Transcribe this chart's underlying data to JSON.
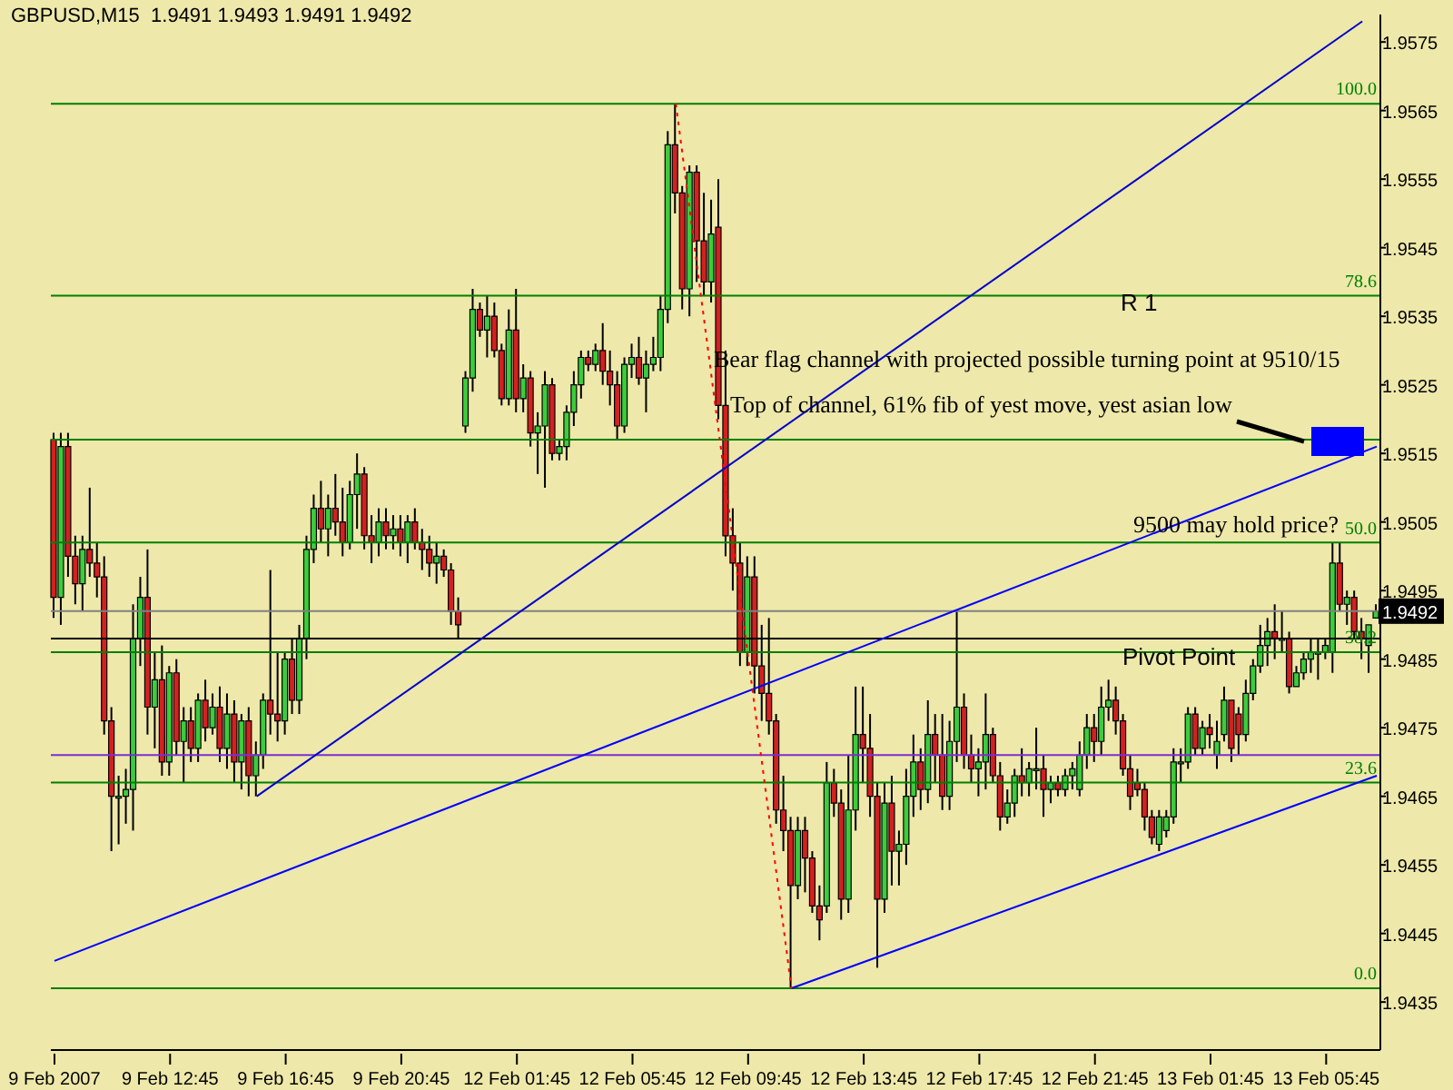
{
  "chart_data": {
    "type": "candlestick",
    "title": "GBPUSD,M15  1.9491 1.9493 1.9491 1.9492",
    "categories": [
      "9 Feb 2007",
      null,
      null,
      null,
      null,
      null,
      null,
      null,
      null,
      null,
      null,
      null,
      null,
      null,
      null,
      null,
      "9 Feb 12:45",
      null,
      null,
      null,
      null,
      null,
      null,
      null,
      null,
      null,
      null,
      null,
      null,
      null,
      null,
      null,
      "9 Feb 16:45",
      null,
      null,
      null,
      null,
      null,
      null,
      null,
      null,
      null,
      null,
      null,
      null,
      null,
      null,
      null,
      "9 Feb 20:45",
      null,
      null,
      null,
      null,
      null,
      null,
      null,
      null,
      null,
      null,
      null,
      null,
      null,
      null,
      null,
      "12 Feb 01:45",
      null,
      null,
      null,
      null,
      null,
      null,
      null,
      null,
      null,
      null,
      null,
      null,
      null,
      null,
      null,
      "12 Feb 05:45",
      null,
      null,
      null,
      null,
      null,
      null,
      null,
      null,
      null,
      null,
      null,
      null,
      null,
      null,
      null,
      "12 Feb 09:45",
      null,
      null,
      null,
      null,
      null,
      null,
      null,
      null,
      null,
      null,
      null,
      null,
      null,
      null,
      null,
      "12 Feb 13:45",
      null,
      null,
      null,
      null,
      null,
      null,
      null,
      null,
      null,
      null,
      null,
      null,
      null,
      null,
      null,
      "12 Feb 17:45",
      null,
      null,
      null,
      null,
      null,
      null,
      null,
      null,
      null,
      null,
      null,
      null,
      null,
      null,
      null,
      "12 Feb 21:45",
      null,
      null,
      null,
      null,
      null,
      null,
      null,
      null,
      null,
      null,
      null,
      null,
      null,
      null,
      null,
      "13 Feb 01:45",
      null,
      null,
      null,
      null,
      null,
      null,
      null,
      null,
      null,
      null,
      null,
      null,
      null,
      null,
      null,
      "13 Feb 05:45",
      null,
      null,
      null,
      null,
      null,
      null,
      null
    ],
    "ohlc": [
      [
        1.9517,
        1.9518,
        1.9491,
        1.9494
      ],
      [
        1.9494,
        1.9518,
        1.949,
        1.9516
      ],
      [
        1.9516,
        1.9518,
        1.9497,
        1.95
      ],
      [
        1.95,
        1.9503,
        1.9493,
        1.9496
      ],
      [
        1.9496,
        1.9503,
        1.9492,
        1.9501
      ],
      [
        1.9501,
        1.951,
        1.9497,
        1.9499
      ],
      [
        1.9499,
        1.9502,
        1.9494,
        1.9497
      ],
      [
        1.9497,
        1.95,
        1.9474,
        1.9476
      ],
      [
        1.9476,
        1.9478,
        1.9457,
        1.9465
      ],
      [
        1.9465,
        1.9468,
        1.9458,
        1.9465
      ],
      [
        1.9465,
        1.9469,
        1.9461,
        1.9466
      ],
      [
        1.9466,
        1.9493,
        1.946,
        1.9488
      ],
      [
        1.9488,
        1.9497,
        1.9484,
        1.9494
      ],
      [
        1.9494,
        1.9501,
        1.9474,
        1.9478
      ],
      [
        1.9478,
        1.9486,
        1.9472,
        1.9482
      ],
      [
        1.9482,
        1.9487,
        1.9468,
        1.947
      ],
      [
        1.947,
        1.9484,
        1.9468,
        1.9483
      ],
      [
        1.9483,
        1.9485,
        1.9471,
        1.9473
      ],
      [
        1.9473,
        1.9478,
        1.9467,
        1.9476
      ],
      [
        1.9476,
        1.9478,
        1.947,
        1.9472
      ],
      [
        1.9472,
        1.948,
        1.947,
        1.9479
      ],
      [
        1.9479,
        1.9482,
        1.9473,
        1.9475
      ],
      [
        1.9475,
        1.948,
        1.9474,
        1.9478
      ],
      [
        1.9478,
        1.9481,
        1.947,
        1.9472
      ],
      [
        1.9472,
        1.948,
        1.9469,
        1.9477
      ],
      [
        1.9477,
        1.9479,
        1.9467,
        1.947
      ],
      [
        1.947,
        1.9477,
        1.9466,
        1.9476
      ],
      [
        1.9476,
        1.9478,
        1.9465,
        1.9468
      ],
      [
        1.9468,
        1.9473,
        1.9465,
        1.9471
      ],
      [
        1.9471,
        1.948,
        1.9469,
        1.9479
      ],
      [
        1.9479,
        1.9498,
        1.9474,
        1.9477
      ],
      [
        1.9477,
        1.9486,
        1.9473,
        1.9476
      ],
      [
        1.9476,
        1.9486,
        1.9474,
        1.9485
      ],
      [
        1.9485,
        1.9488,
        1.9477,
        1.9479
      ],
      [
        1.9479,
        1.949,
        1.9477,
        1.9488
      ],
      [
        1.9488,
        1.9503,
        1.9485,
        1.9501
      ],
      [
        1.9501,
        1.9509,
        1.9499,
        1.9507
      ],
      [
        1.9507,
        1.9511,
        1.9502,
        1.9504
      ],
      [
        1.9504,
        1.9509,
        1.95,
        1.9507
      ],
      [
        1.9507,
        1.9512,
        1.9503,
        1.9505
      ],
      [
        1.9505,
        1.951,
        1.95,
        1.9502
      ],
      [
        1.9502,
        1.9511,
        1.9501,
        1.9509
      ],
      [
        1.9509,
        1.9515,
        1.9504,
        1.9512
      ],
      [
        1.9512,
        1.9513,
        1.9501,
        1.9503
      ],
      [
        1.9503,
        1.9506,
        1.9499,
        1.9502
      ],
      [
        1.9502,
        1.9507,
        1.95,
        1.9505
      ],
      [
        1.9505,
        1.9507,
        1.9501,
        1.9503
      ],
      [
        1.9503,
        1.9506,
        1.9501,
        1.9504
      ],
      [
        1.9504,
        1.9506,
        1.95,
        1.9502
      ],
      [
        1.9502,
        1.9506,
        1.9499,
        1.9505
      ],
      [
        1.9505,
        1.9507,
        1.9501,
        1.9502
      ],
      [
        1.9502,
        1.9504,
        1.9498,
        1.9501
      ],
      [
        1.9501,
        1.9503,
        1.9497,
        1.9499
      ],
      [
        1.9499,
        1.9502,
        1.9496,
        1.95
      ],
      [
        1.95,
        1.9501,
        1.9497,
        1.9498
      ],
      [
        1.9498,
        1.9499,
        1.949,
        1.9492
      ],
      [
        1.9492,
        1.9494,
        1.9488,
        1.949
      ],
      [
        1.9519,
        1.9527,
        1.9518,
        1.9526
      ],
      [
        1.9526,
        1.9539,
        1.9524,
        1.9536
      ],
      [
        1.9536,
        1.9537,
        1.9532,
        1.9533
      ],
      [
        1.9533,
        1.9538,
        1.9529,
        1.9535
      ],
      [
        1.9535,
        1.9537,
        1.9529,
        1.953
      ],
      [
        1.953,
        1.9531,
        1.9522,
        1.9523
      ],
      [
        1.9523,
        1.9536,
        1.9522,
        1.9533
      ],
      [
        1.9533,
        1.9539,
        1.9521,
        1.9523
      ],
      [
        1.9523,
        1.9528,
        1.9521,
        1.9526
      ],
      [
        1.9526,
        1.9527,
        1.9516,
        1.9518
      ],
      [
        1.9518,
        1.9521,
        1.9512,
        1.9519
      ],
      [
        1.9519,
        1.9527,
        1.951,
        1.9525
      ],
      [
        1.9525,
        1.9526,
        1.9514,
        1.9515
      ],
      [
        1.9515,
        1.9517,
        1.9514,
        1.9516
      ],
      [
        1.9516,
        1.9522,
        1.9514,
        1.9521
      ],
      [
        1.9521,
        1.9527,
        1.9519,
        1.9525
      ],
      [
        1.9525,
        1.953,
        1.9523,
        1.9529
      ],
      [
        1.9529,
        1.953,
        1.9527,
        1.9528
      ],
      [
        1.9528,
        1.9531,
        1.9527,
        1.953
      ],
      [
        1.953,
        1.9534,
        1.9525,
        1.9527
      ],
      [
        1.9527,
        1.953,
        1.9522,
        1.9525
      ],
      [
        1.9525,
        1.9527,
        1.9517,
        1.9519
      ],
      [
        1.9519,
        1.9529,
        1.9518,
        1.9528
      ],
      [
        1.9528,
        1.9531,
        1.9526,
        1.9529
      ],
      [
        1.9529,
        1.9532,
        1.9525,
        1.9526
      ],
      [
        1.9526,
        1.953,
        1.9521,
        1.9528
      ],
      [
        1.9528,
        1.9532,
        1.9527,
        1.9529
      ],
      [
        1.9529,
        1.9538,
        1.9527,
        1.9536
      ],
      [
        1.9536,
        1.9562,
        1.9534,
        1.956
      ],
      [
        1.956,
        1.9566,
        1.955,
        1.9553
      ],
      [
        1.9553,
        1.9554,
        1.9536,
        1.9539
      ],
      [
        1.9539,
        1.9557,
        1.9535,
        1.9556
      ],
      [
        1.9556,
        1.9557,
        1.954,
        1.9546
      ],
      [
        1.9546,
        1.9553,
        1.9538,
        1.954
      ],
      [
        1.954,
        1.9552,
        1.9537,
        1.9547
      ],
      [
        1.9548,
        1.9555,
        1.952,
        1.9522
      ],
      [
        1.9522,
        1.953,
        1.95,
        1.9503
      ],
      [
        1.9503,
        1.9507,
        1.9495,
        1.9499
      ],
      [
        1.9499,
        1.9502,
        1.9484,
        1.9486
      ],
      [
        1.9486,
        1.95,
        1.9484,
        1.9497
      ],
      [
        1.9497,
        1.95,
        1.948,
        1.9484
      ],
      [
        1.9484,
        1.949,
        1.9476,
        1.948
      ],
      [
        1.948,
        1.9491,
        1.9474,
        1.9476
      ],
      [
        1.9476,
        1.9477,
        1.9461,
        1.9463
      ],
      [
        1.9463,
        1.9468,
        1.9457,
        1.946
      ],
      [
        1.946,
        1.9462,
        1.9437,
        1.9452
      ],
      [
        1.9452,
        1.9462,
        1.945,
        1.946
      ],
      [
        1.946,
        1.9462,
        1.9451,
        1.9456
      ],
      [
        1.9456,
        1.9457,
        1.9448,
        1.9449
      ],
      [
        1.9449,
        1.9452,
        1.9444,
        1.9447
      ],
      [
        1.9449,
        1.947,
        1.9448,
        1.9467
      ],
      [
        1.9467,
        1.9469,
        1.9462,
        1.9464
      ],
      [
        1.9464,
        1.9466,
        1.9447,
        1.945
      ],
      [
        1.945,
        1.9471,
        1.9448,
        1.9463
      ],
      [
        1.9463,
        1.9481,
        1.946,
        1.9474
      ],
      [
        1.9474,
        1.9481,
        1.9467,
        1.9472
      ],
      [
        1.9472,
        1.9477,
        1.9462,
        1.9465
      ],
      [
        1.9465,
        1.9467,
        1.944,
        1.945
      ],
      [
        1.945,
        1.9467,
        1.9448,
        1.9464
      ],
      [
        1.9464,
        1.9468,
        1.9452,
        1.9457
      ],
      [
        1.9457,
        1.946,
        1.9452,
        1.9458
      ],
      [
        1.9458,
        1.9469,
        1.9455,
        1.9465
      ],
      [
        1.9465,
        1.9474,
        1.9462,
        1.947
      ],
      [
        1.947,
        1.9472,
        1.9463,
        1.9466
      ],
      [
        1.9466,
        1.9479,
        1.9464,
        1.9474
      ],
      [
        1.9474,
        1.9477,
        1.9467,
        1.9471
      ],
      [
        1.9471,
        1.9477,
        1.9463,
        1.9465
      ],
      [
        1.9465,
        1.9476,
        1.9463,
        1.9473
      ],
      [
        1.9473,
        1.9492,
        1.947,
        1.9478
      ],
      [
        1.9478,
        1.948,
        1.9469,
        1.9471
      ],
      [
        1.9471,
        1.9474,
        1.9467,
        1.9469
      ],
      [
        1.9469,
        1.9472,
        1.9465,
        1.947
      ],
      [
        1.947,
        1.948,
        1.9466,
        1.9474
      ],
      [
        1.9474,
        1.9475,
        1.9467,
        1.9468
      ],
      [
        1.9468,
        1.947,
        1.946,
        1.9462
      ],
      [
        1.9462,
        1.9466,
        1.9461,
        1.9464
      ],
      [
        1.9464,
        1.9469,
        1.9462,
        1.9468
      ],
      [
        1.9468,
        1.9472,
        1.9465,
        1.9467
      ],
      [
        1.9467,
        1.947,
        1.9465,
        1.9469
      ],
      [
        1.9469,
        1.9475,
        1.9466,
        1.9469
      ],
      [
        1.9469,
        1.9471,
        1.9462,
        1.9466
      ],
      [
        1.9466,
        1.9468,
        1.9464,
        1.9467
      ],
      [
        1.9467,
        1.9468,
        1.9465,
        1.9466
      ],
      [
        1.9466,
        1.9469,
        1.9465,
        1.9468
      ],
      [
        1.9468,
        1.947,
        1.9466,
        1.9469
      ],
      [
        1.9466,
        1.9473,
        1.9465,
        1.9471
      ],
      [
        1.9471,
        1.9477,
        1.9469,
        1.9475
      ],
      [
        1.9475,
        1.9477,
        1.947,
        1.9473
      ],
      [
        1.9473,
        1.9481,
        1.9471,
        1.9478
      ],
      [
        1.9478,
        1.9482,
        1.9476,
        1.9479
      ],
      [
        1.9479,
        1.9481,
        1.9474,
        1.9476
      ],
      [
        1.9476,
        1.9477,
        1.9468,
        1.9469
      ],
      [
        1.9469,
        1.9471,
        1.9463,
        1.9465
      ],
      [
        1.9467,
        1.9469,
        1.9465,
        1.9466
      ],
      [
        1.9466,
        1.9467,
        1.946,
        1.9462
      ],
      [
        1.9462,
        1.9463,
        1.9458,
        1.9459
      ],
      [
        1.9458,
        1.9463,
        1.9457,
        1.9462
      ],
      [
        1.946,
        1.9463,
        1.9459,
        1.9462
      ],
      [
        1.9462,
        1.9472,
        1.9461,
        1.947
      ],
      [
        1.947,
        1.9472,
        1.9467,
        1.947
      ],
      [
        1.947,
        1.9478,
        1.9469,
        1.9477
      ],
      [
        1.9477,
        1.9478,
        1.9471,
        1.9472
      ],
      [
        1.9472,
        1.9476,
        1.9471,
        1.9475
      ],
      [
        1.9475,
        1.9477,
        1.9472,
        1.9474
      ],
      [
        1.9471,
        1.9476,
        1.9469,
        1.9473
      ],
      [
        1.9474,
        1.9481,
        1.9473,
        1.9479
      ],
      [
        1.9479,
        1.9479,
        1.947,
        1.9472
      ],
      [
        1.9477,
        1.9478,
        1.9471,
        1.9474
      ],
      [
        1.9474,
        1.9482,
        1.9473,
        1.948
      ],
      [
        1.948,
        1.9485,
        1.9479,
        1.9484
      ],
      [
        1.9484,
        1.949,
        1.9483,
        1.9487
      ],
      [
        1.9487,
        1.9491,
        1.9484,
        1.9489
      ],
      [
        1.9489,
        1.9493,
        1.9485,
        1.9488
      ],
      [
        1.9488,
        1.9492,
        1.9486,
        1.9488
      ],
      [
        1.9488,
        1.9489,
        1.948,
        1.9481
      ],
      [
        1.9481,
        1.9484,
        1.9481,
        1.9483
      ],
      [
        1.9483,
        1.9486,
        1.9482,
        1.9485
      ],
      [
        1.9485,
        1.9488,
        1.9483,
        1.9486
      ],
      [
        1.9486,
        1.9488,
        1.9482,
        1.9486
      ],
      [
        1.9486,
        1.9488,
        1.9485,
        1.9487
      ],
      [
        1.9486,
        1.9502,
        1.9483,
        1.9499
      ],
      [
        1.9499,
        1.9502,
        1.9492,
        1.9493
      ],
      [
        1.9493,
        1.9495,
        1.949,
        1.9494
      ],
      [
        1.9494,
        1.9495,
        1.9488,
        1.9489
      ],
      [
        1.9489,
        1.9491,
        1.9485,
        1.9488
      ],
      [
        1.9487,
        1.949,
        1.9483,
        1.949
      ],
      [
        1.9491,
        1.9493,
        1.9491,
        1.9492
      ]
    ],
    "series": [
      {
        "type": "line",
        "color": "#0000cc",
        "values": [
          null,
          null,
          null,
          null,
          null,
          null,
          null,
          null,
          null,
          null,
          null,
          null,
          null,
          null,
          null,
          null,
          null,
          null,
          null,
          null,
          null,
          null,
          null,
          null,
          null,
          null,
          null,
          null,
          1.9465,
          null,
          null,
          null,
          null,
          null,
          null,
          null,
          null,
          null,
          null,
          null,
          null,
          null,
          null,
          null,
          null,
          null,
          null,
          null,
          null,
          null,
          null,
          null,
          null,
          null,
          null,
          null,
          null,
          null,
          null,
          null,
          null,
          null,
          null,
          null,
          null,
          null,
          null,
          null,
          null,
          null,
          null,
          null,
          null,
          null,
          null,
          null,
          null,
          null,
          null,
          null,
          null,
          null,
          null,
          null,
          null,
          null,
          null,
          null,
          null,
          null,
          null,
          null,
          null,
          null,
          null,
          null,
          null,
          null,
          null,
          null,
          null,
          null,
          null,
          null,
          null,
          null,
          null,
          null,
          null,
          null,
          null,
          null,
          null,
          null,
          null,
          null,
          null,
          null,
          null,
          null,
          null,
          null,
          null,
          null,
          null,
          null,
          null,
          null,
          null,
          null,
          null,
          null,
          null,
          null,
          null,
          null,
          null,
          null,
          null,
          null,
          null,
          null,
          null,
          null,
          null,
          null,
          null,
          null,
          null,
          null,
          null,
          null,
          null,
          null,
          null,
          null,
          null,
          null,
          null,
          null,
          null,
          null,
          null,
          null,
          null,
          null,
          null,
          null,
          null,
          null,
          null,
          null,
          null,
          null,
          null,
          null,
          null,
          null,
          null,
          null,
          null,
          1.9578,
          null,
          null
        ]
      },
      {
        "type": "line",
        "color": "#0000ff",
        "values": [
          1.9441,
          null,
          null,
          null,
          null,
          null,
          null,
          null,
          null,
          null,
          null,
          null,
          null,
          null,
          null,
          null,
          null,
          null,
          null,
          null,
          null,
          null,
          null,
          null,
          null,
          null,
          null,
          null,
          null,
          null,
          null,
          null,
          null,
          null,
          null,
          null,
          null,
          null,
          null,
          null,
          null,
          null,
          null,
          null,
          null,
          null,
          null,
          null,
          null,
          null,
          null,
          null,
          null,
          null,
          null,
          null,
          null,
          null,
          null,
          null,
          null,
          null,
          null,
          null,
          null,
          null,
          null,
          null,
          null,
          null,
          null,
          null,
          null,
          null,
          null,
          null,
          null,
          null,
          null,
          null,
          null,
          null,
          null,
          null,
          null,
          null,
          null,
          null,
          null,
          null,
          null,
          null,
          null,
          null,
          null,
          null,
          null,
          null,
          null,
          null,
          null,
          null,
          null,
          null,
          null,
          null,
          null,
          null,
          null,
          null,
          null,
          null,
          null,
          null,
          null,
          null,
          null,
          null,
          null,
          null,
          null,
          null,
          null,
          null,
          null,
          null,
          null,
          null,
          null,
          null,
          null,
          null,
          null,
          null,
          null,
          null,
          null,
          null,
          null,
          null,
          null,
          null,
          null,
          null,
          null,
          null,
          null,
          null,
          null,
          null,
          null,
          null,
          null,
          null,
          null,
          null,
          null,
          null,
          null,
          null,
          null,
          null,
          null,
          null,
          null,
          null,
          null,
          null,
          null,
          null,
          null,
          null,
          null,
          null,
          null,
          null,
          null,
          null,
          null,
          null,
          null,
          null,
          null,
          1.9516
        ]
      },
      {
        "type": "line",
        "color": "#0000ff",
        "values": [
          null,
          null,
          null,
          null,
          null,
          null,
          null,
          null,
          null,
          null,
          null,
          null,
          null,
          null,
          null,
          null,
          null,
          null,
          null,
          null,
          null,
          null,
          null,
          null,
          null,
          null,
          null,
          null,
          null,
          null,
          null,
          null,
          null,
          null,
          null,
          null,
          null,
          null,
          null,
          null,
          null,
          null,
          null,
          null,
          null,
          null,
          null,
          null,
          null,
          null,
          null,
          null,
          null,
          null,
          null,
          null,
          null,
          null,
          null,
          null,
          null,
          null,
          null,
          null,
          null,
          null,
          null,
          null,
          null,
          null,
          null,
          null,
          null,
          null,
          null,
          null,
          null,
          null,
          null,
          null,
          null,
          null,
          null,
          null,
          null,
          null,
          null,
          null,
          null,
          null,
          null,
          null,
          null,
          null,
          null,
          null,
          null,
          null,
          null,
          null,
          null,
          null,
          1.9437,
          null,
          null,
          null,
          null,
          null,
          null,
          null,
          null,
          null,
          null,
          null,
          null,
          null,
          null,
          null,
          null,
          null,
          null,
          null,
          null,
          null,
          null,
          null,
          null,
          null,
          null,
          null,
          null,
          null,
          null,
          null,
          null,
          null,
          null,
          null,
          null,
          null,
          null,
          null,
          null,
          null,
          null,
          null,
          null,
          null,
          null,
          null,
          null,
          null,
          null,
          null,
          null,
          null,
          null,
          null,
          null,
          null,
          null,
          null,
          null,
          null,
          null,
          null,
          null,
          null,
          null,
          null,
          null,
          null,
          null,
          null,
          null,
          null,
          null,
          null,
          null,
          null,
          null,
          null,
          null,
          1.9468
        ]
      },
      {
        "type": "line",
        "color": "#ff0000",
        "line_style": "dotted",
        "values": [
          null,
          null,
          null,
          null,
          null,
          null,
          null,
          null,
          null,
          null,
          null,
          null,
          null,
          null,
          null,
          null,
          null,
          null,
          null,
          null,
          null,
          null,
          null,
          null,
          null,
          null,
          null,
          null,
          null,
          null,
          null,
          null,
          null,
          null,
          null,
          null,
          null,
          null,
          null,
          null,
          null,
          null,
          null,
          null,
          null,
          null,
          null,
          null,
          null,
          null,
          null,
          null,
          null,
          null,
          null,
          null,
          null,
          null,
          null,
          null,
          null,
          null,
          null,
          null,
          null,
          null,
          null,
          null,
          null,
          null,
          null,
          null,
          null,
          null,
          null,
          null,
          null,
          null,
          null,
          null,
          null,
          null,
          null,
          null,
          null,
          null,
          1.9566,
          null,
          null,
          null,
          null,
          null,
          null,
          null,
          null,
          null,
          null,
          null,
          null,
          null,
          null,
          null,
          1.9437,
          null,
          null,
          null,
          null,
          null,
          null,
          null,
          null,
          null,
          null,
          null,
          null,
          null,
          null,
          null,
          null,
          null,
          null,
          null,
          null,
          null,
          null,
          null,
          null,
          null,
          null,
          null,
          null,
          null,
          null,
          null,
          null,
          null,
          null,
          null,
          null,
          null,
          null,
          null,
          null,
          null,
          null,
          null,
          null,
          null,
          null,
          null,
          null,
          null,
          null,
          null,
          null,
          null,
          null,
          null,
          null,
          null,
          null,
          null,
          null,
          null,
          null,
          null,
          null,
          null,
          null,
          null,
          null,
          null,
          null,
          null,
          null,
          null,
          null,
          null,
          null,
          null,
          null,
          null,
          null,
          null
        ]
      }
    ],
    "ylim": [
      1.9428,
      1.9579
    ],
    "yticks": [
      1.9435,
      1.9445,
      1.9455,
      1.9465,
      1.9475,
      1.9485,
      {
        "value": 1.9492,
        "label": "1.9492"
      },
      1.9495,
      1.9505,
      1.9515,
      1.9525,
      1.9535,
      1.9545,
      1.9555,
      1.9565,
      1.9575
    ],
    "ref_lines": [
      {
        "axis": "y",
        "value": 1.9566,
        "color": "#008000"
      },
      {
        "axis": "y",
        "value": 1.9538,
        "color": "#008000"
      },
      {
        "axis": "y",
        "value": 1.9517,
        "color": "#008000"
      },
      {
        "axis": "y",
        "value": 1.9502,
        "color": "#008000"
      },
      {
        "axis": "y",
        "value": 1.9486,
        "color": "#008000"
      },
      {
        "axis": "y",
        "value": 1.9467,
        "color": "#008000"
      },
      {
        "axis": "y",
        "value": 1.9437,
        "color": "#008000"
      },
      {
        "axis": "y",
        "value": 1.9492,
        "color": "#808080"
      },
      {
        "axis": "y",
        "value": 1.9488,
        "color": "#000000"
      },
      {
        "axis": "y",
        "value": 1.9471,
        "color": "#7b2fd0"
      }
    ],
    "annotations": [
      "Bear flag channel with projected possible turning point at 9510/15",
      "Top of channel, 61% fib of yest move, yest asian low",
      "9500 may hold price?",
      "R 1",
      {
        "text": "Pivot Point",
        "y": 1.9488
      },
      {
        "text": "100.0",
        "y": 1.9566
      },
      {
        "text": "78.6",
        "y": 1.9538
      },
      {
        "text": "50.0",
        "y": 1.9502
      },
      {
        "text": "38.2",
        "y": 1.9486
      },
      {
        "text": "23.6",
        "y": 1.9467
      },
      {
        "text": "0.0",
        "y": 1.9437
      }
    ]
  }
}
